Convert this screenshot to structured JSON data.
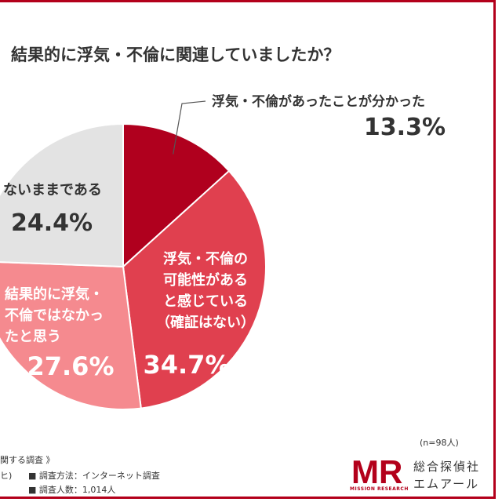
{
  "title": "結果的に浮気・不倫に関連していましたか？",
  "n_label": "(n=98人)",
  "footer": {
    "left_title": "関する調査 》",
    "left_sub": "ヒ)",
    "method": "■ 調査方法：インターネット調査",
    "count": "■ 調査人数：1,014人"
  },
  "brand": {
    "line1": "総合探偵社",
    "line2": "エムアール",
    "logo_text": "MR",
    "logo_sub": "MISSION RESEARCH",
    "color": "#b3001b"
  },
  "chart_data": {
    "type": "pie",
    "title": "結果的に浮気・不倫に関連していましたか？",
    "slices": [
      {
        "label": "浮気・不倫があったことが分かった",
        "lines": [
          "浮気・不倫があったことが分かった"
        ],
        "value": 13.3,
        "value_label": "13.3%",
        "color": "#b0001e"
      },
      {
        "label": "浮気・不倫の可能性があると感じている（確証はない）",
        "lines": [
          "浮気・不倫の",
          "可能性がある",
          "と感じている",
          "（確証はない）"
        ],
        "value": 34.7,
        "value_label": "34.7%",
        "color": "#e0404f"
      },
      {
        "label": "結果的に浮気・不倫ではなかったと思う",
        "lines": [
          "結果的に浮気・",
          "不倫ではなかっ",
          "たと思う"
        ],
        "value": 27.6,
        "value_label": "27.6%",
        "color": "#f58a8f"
      },
      {
        "label": "ないままである",
        "lines": [
          "ないままである"
        ],
        "value": 24.4,
        "value_label": "24.4%",
        "color": "#e3e3e3"
      }
    ]
  }
}
